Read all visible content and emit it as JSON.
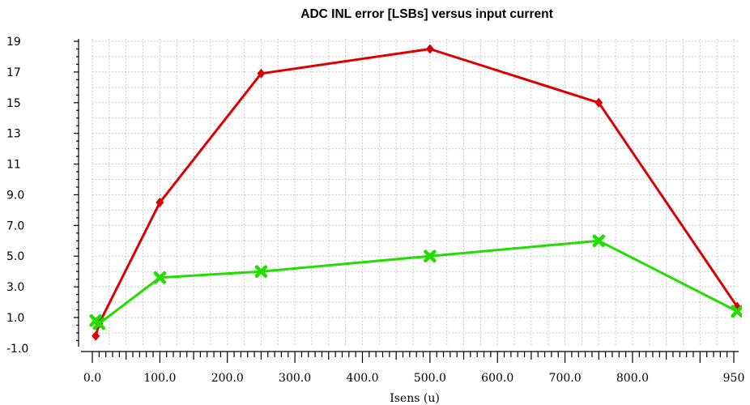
{
  "chart_data": {
    "type": "line",
    "title": "ADC INL error [LSBs] versus input current",
    "xlabel": "Isens (u)",
    "ylabel": "",
    "xlim": [
      0,
      955
    ],
    "ylim": [
      -1.0,
      19.5
    ],
    "x_ticks": [
      0,
      100,
      200,
      300,
      400,
      500,
      600,
      700,
      800,
      950
    ],
    "x_tick_labels": [
      "0.0",
      "100.0",
      "200.0",
      "300.0",
      "400.0",
      "500.0",
      "600.0",
      "700.0",
      "800.0",
      "950"
    ],
    "y_ticks": [
      -1.0,
      1.0,
      3.0,
      5.0,
      7.0,
      9.0,
      11,
      13,
      15,
      17,
      19
    ],
    "y_tick_labels": [
      "-1.0",
      "1.0",
      "3.0",
      "5.0",
      "7.0",
      "9.0",
      "11",
      "13",
      "15",
      "17",
      "19"
    ],
    "grid": true,
    "legend": "none",
    "series": [
      {
        "color": "#dd0000",
        "marker": "diamond",
        "x": [
          5,
          10,
          100,
          250,
          500,
          750,
          955
        ],
        "y": [
          -0.2,
          0.6,
          8.5,
          16.9,
          18.5,
          15.0,
          1.7
        ]
      },
      {
        "color": "#22dd00",
        "marker": "x",
        "x": [
          5,
          10,
          100,
          250,
          500,
          750,
          955
        ],
        "y": [
          0.8,
          0.6,
          3.6,
          4.0,
          5.0,
          6.0,
          1.4
        ]
      }
    ]
  }
}
